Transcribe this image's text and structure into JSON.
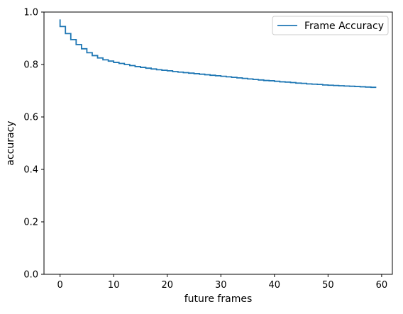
{
  "chart_data": {
    "type": "line",
    "drawstyle": "steps",
    "xlabel": "future frames",
    "ylabel": "accuracy",
    "xlim": [
      -3.0,
      62.0
    ],
    "ylim": [
      0.0,
      1.0
    ],
    "xticks": [
      0,
      10,
      20,
      30,
      40,
      50,
      60
    ],
    "yticks": [
      0.0,
      0.2,
      0.4,
      0.6,
      0.8,
      1.0
    ],
    "xtick_labels": [
      "0",
      "10",
      "20",
      "30",
      "40",
      "50",
      "60"
    ],
    "ytick_labels": [
      "0.0",
      "0.2",
      "0.4",
      "0.6",
      "0.8",
      "1.0"
    ],
    "grid": false,
    "legend_position": "top-right",
    "series": [
      {
        "name": "Frame Accuracy",
        "color": "#1f77b4",
        "x": [
          0,
          1,
          2,
          3,
          4,
          5,
          6,
          7,
          8,
          9,
          10,
          11,
          12,
          13,
          14,
          15,
          16,
          17,
          18,
          19,
          20,
          21,
          22,
          23,
          24,
          25,
          26,
          27,
          28,
          29,
          30,
          31,
          32,
          33,
          34,
          35,
          36,
          37,
          38,
          39,
          40,
          41,
          42,
          43,
          44,
          45,
          46,
          47,
          48,
          49,
          50,
          51,
          52,
          53,
          54,
          55,
          56,
          57,
          58,
          59
        ],
        "values": [
          0.972,
          0.945,
          0.918,
          0.895,
          0.876,
          0.86,
          0.845,
          0.834,
          0.825,
          0.818,
          0.813,
          0.808,
          0.804,
          0.8,
          0.796,
          0.792,
          0.789,
          0.786,
          0.783,
          0.78,
          0.778,
          0.776,
          0.773,
          0.771,
          0.769,
          0.767,
          0.765,
          0.763,
          0.761,
          0.759,
          0.757,
          0.755,
          0.753,
          0.751,
          0.749,
          0.747,
          0.745,
          0.743,
          0.741,
          0.739,
          0.738,
          0.736,
          0.734,
          0.733,
          0.731,
          0.729,
          0.728,
          0.726,
          0.725,
          0.724,
          0.722,
          0.721,
          0.72,
          0.719,
          0.718,
          0.717,
          0.716,
          0.715,
          0.714,
          0.713
        ]
      }
    ]
  }
}
